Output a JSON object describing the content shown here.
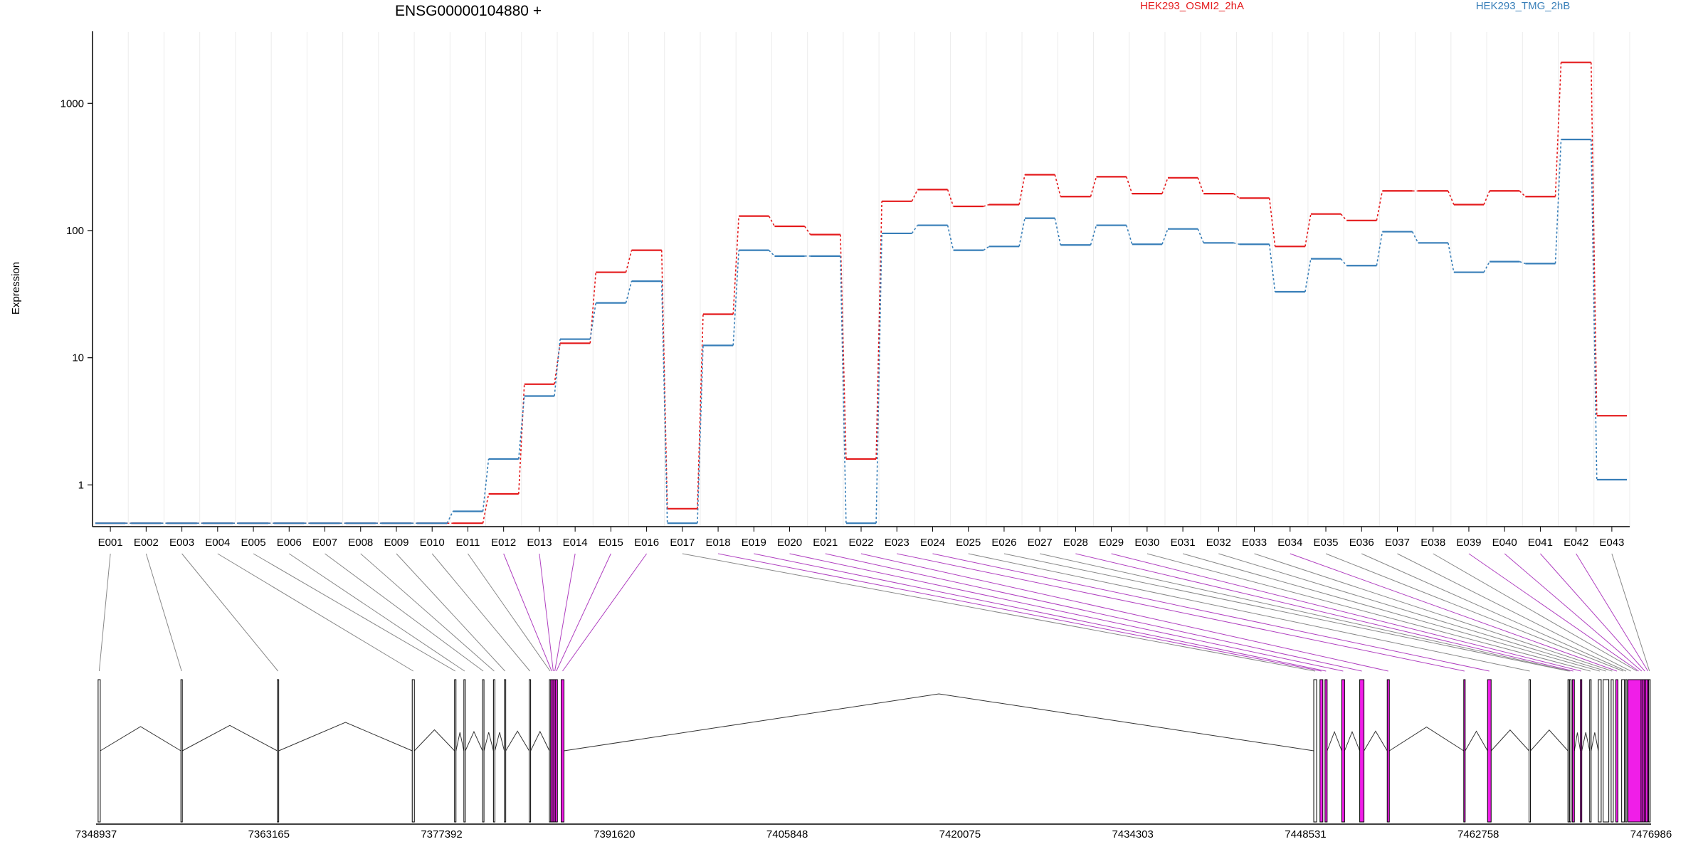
{
  "chart_data": {
    "type": "line",
    "title": "ENSG00000104880 +",
    "ylabel": "Expression",
    "yscale": "log",
    "ylim": [
      0.47,
      3000
    ],
    "yticks": [
      1,
      10,
      100,
      1000
    ],
    "legend": "top",
    "categories": [
      "E001",
      "E002",
      "E003",
      "E004",
      "E005",
      "E006",
      "E007",
      "E008",
      "E009",
      "E010",
      "E011",
      "E012",
      "E013",
      "E014",
      "E015",
      "E016",
      "E017",
      "E018",
      "E019",
      "E020",
      "E021",
      "E022",
      "E023",
      "E024",
      "E025",
      "E026",
      "E027",
      "E028",
      "E029",
      "E030",
      "E031",
      "E032",
      "E033",
      "E034",
      "E035",
      "E036",
      "E037",
      "E038",
      "E039",
      "E040",
      "E041",
      "E042",
      "E043"
    ],
    "series": [
      {
        "name": "HEK293_OSMI2_2hA",
        "color": "#e41a1c",
        "values": [
          0.5,
          0.5,
          0.5,
          0.5,
          0.5,
          0.5,
          0.5,
          0.5,
          0.5,
          0.5,
          0.5,
          0.85,
          6.2,
          13,
          47,
          70,
          0.65,
          22,
          130,
          108,
          93,
          1.6,
          170,
          210,
          155,
          160,
          275,
          185,
          265,
          195,
          260,
          195,
          180,
          75,
          135,
          120,
          205,
          205,
          160,
          205,
          185,
          2100,
          3.5
        ]
      },
      {
        "name": "HEK293_TMG_2hB",
        "color": "#377eb8",
        "values": [
          0.5,
          0.5,
          0.5,
          0.5,
          0.5,
          0.5,
          0.5,
          0.5,
          0.5,
          0.5,
          0.62,
          1.6,
          5.0,
          14,
          27,
          40,
          0.5,
          12.5,
          70,
          63,
          63,
          0.5,
          95,
          110,
          70,
          75,
          125,
          77,
          110,
          78,
          103,
          80,
          78,
          33,
          60,
          53,
          98,
          80,
          47,
          57,
          55,
          520,
          1.1
        ]
      }
    ],
    "xaxis_ticks": [
      "7348937",
      "7363165",
      "7377392",
      "7391620",
      "7405848",
      "7420075",
      "7434303",
      "7448531",
      "7462758",
      "7476986"
    ],
    "xlim": [
      7348937,
      7476986
    ],
    "highlighted_exons": [
      "E012",
      "E013",
      "E014",
      "E015",
      "E016",
      "E018",
      "E019",
      "E020",
      "E021",
      "E022",
      "E023",
      "E024",
      "E028",
      "E029",
      "E034",
      "E039",
      "E040",
      "E041",
      "E042"
    ]
  }
}
